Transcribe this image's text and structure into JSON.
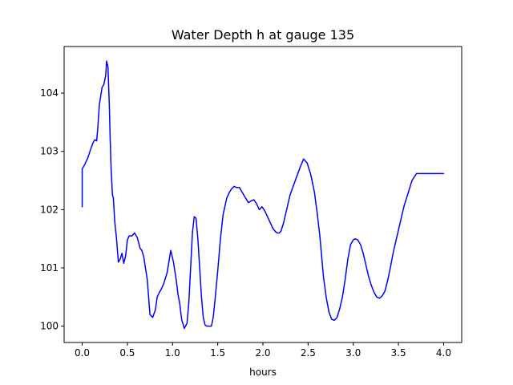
{
  "chart_data": {
    "type": "line",
    "title": "Water Depth h at gauge 135",
    "xlabel": "hours",
    "ylabel": "",
    "xlim": [
      -0.2,
      4.2
    ],
    "ylim": [
      99.72,
      104.8
    ],
    "grid": false,
    "x_ticks": [
      0.0,
      0.5,
      1.0,
      1.5,
      2.0,
      2.5,
      3.0,
      3.5,
      4.0
    ],
    "x_tick_labels": [
      "0.0",
      "0.5",
      "1.0",
      "1.5",
      "2.0",
      "2.5",
      "3.0",
      "3.5",
      "4.0"
    ],
    "y_ticks": [
      100,
      101,
      102,
      103,
      104
    ],
    "y_tick_labels": [
      "100",
      "101",
      "102",
      "103",
      "104"
    ],
    "series": [
      {
        "color": "#0000ff",
        "x": [
          0.0,
          0.0,
          0.02,
          0.06,
          0.09,
          0.12,
          0.14,
          0.16,
          0.17,
          0.19,
          0.2,
          0.22,
          0.24,
          0.26,
          0.27,
          0.285,
          0.3,
          0.31,
          0.32,
          0.335,
          0.345,
          0.36,
          0.38,
          0.4,
          0.42,
          0.44,
          0.46,
          0.48,
          0.5,
          0.52,
          0.55,
          0.58,
          0.61,
          0.64,
          0.66,
          0.68,
          0.72,
          0.75,
          0.78,
          0.81,
          0.83,
          0.85,
          0.87,
          0.9,
          0.94,
          0.98,
          1.01,
          1.04,
          1.06,
          1.08,
          1.1,
          1.13,
          1.16,
          1.18,
          1.2,
          1.22,
          1.24,
          1.26,
          1.28,
          1.3,
          1.32,
          1.34,
          1.36,
          1.38,
          1.41,
          1.43,
          1.45,
          1.47,
          1.5,
          1.53,
          1.56,
          1.6,
          1.63,
          1.65,
          1.68,
          1.71,
          1.74,
          1.77,
          1.8,
          1.84,
          1.87,
          1.9,
          1.93,
          1.96,
          1.99,
          2.02,
          2.05,
          2.08,
          2.11,
          2.14,
          2.16,
          2.18,
          2.2,
          2.23,
          2.27,
          2.3,
          2.33,
          2.37,
          2.41,
          2.45,
          2.49,
          2.53,
          2.57,
          2.6,
          2.63,
          2.65,
          2.67,
          2.7,
          2.73,
          2.76,
          2.79,
          2.82,
          2.85,
          2.88,
          2.91,
          2.94,
          2.97,
          3.0,
          3.02,
          3.05,
          3.08,
          3.11,
          3.14,
          3.17,
          3.2,
          3.23,
          3.26,
          3.29,
          3.32,
          3.35,
          3.38,
          3.41,
          3.44,
          3.47,
          3.5,
          3.53,
          3.56,
          3.59,
          3.62,
          3.65,
          3.7,
          3.75,
          3.8,
          3.85,
          3.9,
          3.95,
          4.0
        ],
        "y": [
          102.05,
          102.7,
          102.75,
          102.88,
          103.02,
          103.15,
          103.2,
          103.18,
          103.35,
          103.8,
          103.9,
          104.1,
          104.15,
          104.3,
          104.55,
          104.45,
          103.8,
          103.2,
          102.7,
          102.25,
          102.2,
          101.8,
          101.5,
          101.1,
          101.15,
          101.25,
          101.08,
          101.2,
          101.48,
          101.55,
          101.55,
          101.6,
          101.52,
          101.34,
          101.3,
          101.2,
          100.8,
          100.2,
          100.15,
          100.28,
          100.5,
          100.57,
          100.62,
          100.72,
          100.92,
          101.3,
          101.1,
          100.8,
          100.55,
          100.38,
          100.12,
          99.96,
          100.05,
          100.4,
          101.0,
          101.6,
          101.88,
          101.85,
          101.5,
          101.0,
          100.5,
          100.15,
          100.02,
          100.0,
          100.0,
          100.0,
          100.15,
          100.45,
          100.95,
          101.5,
          101.92,
          102.2,
          102.3,
          102.35,
          102.4,
          102.38,
          102.38,
          102.3,
          102.22,
          102.12,
          102.15,
          102.17,
          102.1,
          102.0,
          102.05,
          101.98,
          101.88,
          101.78,
          101.68,
          101.62,
          101.6,
          101.6,
          101.63,
          101.78,
          102.05,
          102.25,
          102.38,
          102.55,
          102.72,
          102.87,
          102.8,
          102.6,
          102.3,
          101.95,
          101.55,
          101.2,
          100.85,
          100.5,
          100.25,
          100.12,
          100.1,
          100.15,
          100.3,
          100.5,
          100.8,
          101.15,
          101.4,
          101.48,
          101.5,
          101.48,
          101.4,
          101.25,
          101.05,
          100.85,
          100.7,
          100.58,
          100.5,
          100.48,
          100.52,
          100.6,
          100.78,
          101.0,
          101.25,
          101.45,
          101.65,
          101.85,
          102.05,
          102.2,
          102.35,
          102.5,
          102.62,
          102.62,
          102.62,
          102.62,
          102.62,
          102.62,
          102.62
        ]
      }
    ]
  }
}
